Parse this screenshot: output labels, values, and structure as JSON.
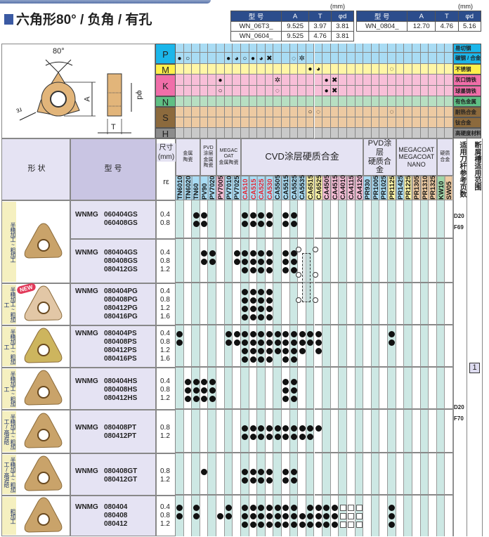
{
  "title": "六角形80° / 负角 / 有孔",
  "spec_tables": [
    {
      "unit": "(mm)",
      "headers": [
        "型 号",
        "A",
        "T",
        "φd"
      ],
      "rows": [
        [
          "WN_06T3_",
          "9.525",
          "3.97",
          "3.81"
        ],
        [
          "WN_0604_",
          "9.525",
          "4.76",
          "3.81"
        ]
      ]
    },
    {
      "unit": "(mm)",
      "headers": [
        "型 号",
        "A",
        "T",
        "φd"
      ],
      "rows": [
        [
          "WN_0804_",
          "12.70",
          "4.76",
          "5.16"
        ]
      ]
    }
  ],
  "diagram": {
    "angle": "80°",
    "a": "A",
    "t": "T",
    "d": "φd",
    "r": "rε"
  },
  "materials": [
    {
      "code": "P",
      "color": "#1bb6ea",
      "cell": "#a9dcf4",
      "dark": "#1bb6ea",
      "rows": [
        "易切钢",
        "碳钢 / 合金钢"
      ]
    },
    {
      "code": "M",
      "color": "#fff04a",
      "cell": "#fff6a6",
      "dark": "#fff04a",
      "rows": [
        "不锈钢"
      ]
    },
    {
      "code": "K",
      "color": "#f06ea9",
      "cell": "#f8bfd8",
      "dark": "#f06ea9",
      "rows": [
        "灰口铸铁",
        "球墨铸铁"
      ]
    },
    {
      "code": "N",
      "color": "#5fbf84",
      "cell": "#b7dfc2",
      "dark": "#5fbf84",
      "rows": [
        "有色金属"
      ]
    },
    {
      "code": "S",
      "color": "#8c6a3d",
      "cell": "#edcaa2",
      "dark": "#8c6a3d",
      "rows": [
        "耐热合金",
        "钛合金"
      ]
    },
    {
      "code": "H",
      "color": "#8c8c8c",
      "cell": "#c9c9c9",
      "dark": "#8c8c8c",
      "rows": [
        "高硬度材料"
      ]
    }
  ],
  "material_marks": [
    [],
    [
      [
        "TN6010",
        "fill"
      ],
      [
        "TN6020",
        "open"
      ],
      [
        "PV7010",
        "fill"
      ],
      [
        "PV7025",
        "notch"
      ],
      [
        "CA510",
        "open"
      ],
      [
        "CA515",
        "fill"
      ],
      [
        "CA525",
        "notch"
      ],
      [
        "CA530",
        "cross"
      ],
      [
        "CA5525",
        "opennotch"
      ],
      [
        "CA5535",
        "gear"
      ]
    ],
    [
      [
        "CA6515",
        "fill"
      ],
      [
        "CA6525",
        "notch"
      ],
      [
        "PR1125",
        "opennotch"
      ]
    ],
    [
      [
        "PV7005",
        "fill"
      ],
      [
        "CA5505",
        "gear"
      ],
      [
        "CA4505",
        "fill"
      ],
      [
        "CA4515",
        "cross"
      ]
    ],
    [
      [
        "PV7005",
        "open"
      ],
      [
        "CA5505",
        "opennotch"
      ],
      [
        "CA4505",
        "fill"
      ],
      [
        "CA4515",
        "cross"
      ]
    ],
    [],
    [
      [
        "CA6515",
        "open"
      ],
      [
        "CA6525",
        "opennotch"
      ],
      [
        "PR1125",
        "opennotch"
      ]
    ],
    [],
    []
  ],
  "symbols": {
    "fill": "●",
    "open": "○",
    "notch": "◕",
    "cross": "✖",
    "opennotch": "◌",
    "gear": "✲"
  },
  "header": {
    "shape": "形 状",
    "model": "型 号",
    "size": "尺寸\n(mm)",
    "r": "rε",
    "holder": "适用刀杆参考页数",
    "breaker": "断屑槽适用范围"
  },
  "groups": [
    {
      "label": "金属\n陶瓷",
      "from": "TN6010",
      "to": "TN60"
    },
    {
      "label": "PVD涂层\n金属陶瓷",
      "from": "PV90",
      "to": "PV7020"
    },
    {
      "label": "MEGACOAT\n金属陶瓷",
      "from": "PV7005",
      "to": "PV7025"
    },
    {
      "label": "CVD涂层硬质合金",
      "from": "CA510",
      "to": "CA4120"
    },
    {
      "label": "PVD涂层\n硬质合金",
      "from": "PR930",
      "to": "PR1125"
    },
    {
      "label": "MEGACOAT\nMEGACOAT NANO",
      "from": "PR1425",
      "to": "PR1325"
    },
    {
      "label": "硬质\n合金",
      "from": "KW10",
      "to": "SW05"
    }
  ],
  "grades": [
    {
      "n": "TN6010",
      "bg": "#a9dcf4"
    },
    {
      "n": "TN6020",
      "bg": "#a9dcf4"
    },
    {
      "n": "TN60",
      "bg": "#a9dcf4"
    },
    {
      "n": "PV90",
      "bg": "#a9dcf4"
    },
    {
      "n": "PV7020",
      "bg": "#a9dcf4"
    },
    {
      "n": "PV7005",
      "bg": "#f8bfd8"
    },
    {
      "n": "PV7010",
      "bg": "#a9dcf4"
    },
    {
      "n": "PV7025",
      "bg": "#a9dcf4"
    },
    {
      "n": "CA510",
      "bg": "#a9dcf4",
      "red": true
    },
    {
      "n": "CA515",
      "bg": "#a9dcf4",
      "red": true
    },
    {
      "n": "CA525",
      "bg": "#a9dcf4",
      "red": true
    },
    {
      "n": "CA530",
      "bg": "#a9dcf4",
      "red": true
    },
    {
      "n": "CA5505",
      "bg": "#a9dcf4"
    },
    {
      "n": "CA5515",
      "bg": "#a9dcf4"
    },
    {
      "n": "CA5525",
      "bg": "#a9dcf4"
    },
    {
      "n": "CA5535",
      "bg": "#a9dcf4"
    },
    {
      "n": "CA6515",
      "bg": "#fff6a6"
    },
    {
      "n": "CA6525",
      "bg": "#fff6a6"
    },
    {
      "n": "CA4505",
      "bg": "#f8bfd8"
    },
    {
      "n": "CA4515",
      "bg": "#f8bfd8"
    },
    {
      "n": "CA4010",
      "bg": "#f8bfd8"
    },
    {
      "n": "CA4115",
      "bg": "#f8bfd8"
    },
    {
      "n": "CA4120",
      "bg": "#f8bfd8"
    },
    {
      "n": "PR930",
      "bg": "#a9dcf4"
    },
    {
      "n": "PR1005",
      "bg": "#a9dcf4"
    },
    {
      "n": "PR1025",
      "bg": "#a9dcf4"
    },
    {
      "n": "PR1125",
      "bg": "#fff6a6"
    },
    {
      "n": "PR1425",
      "bg": "#a9dcf4"
    },
    {
      "n": "PR1225",
      "bg": "#fff6a6"
    },
    {
      "n": "PR1305",
      "bg": "#edcaa2"
    },
    {
      "n": "PR1310",
      "bg": "#edcaa2"
    },
    {
      "n": "PR1325",
      "bg": "#edcaa2"
    },
    {
      "n": "KW10",
      "bg": "#9fd6a8"
    },
    {
      "n": "SW05",
      "bg": "#edcaa2"
    }
  ],
  "products": [
    {
      "prefix": "WNMG",
      "application": "半精加工~粗加工",
      "shape": "gs",
      "new": false,
      "items": [
        {
          "model": "060404GS",
          "r": "0.4",
          "g": [
            2,
            3,
            8,
            9,
            10,
            11,
            13,
            14
          ]
        },
        {
          "model": "060408GS",
          "r": "0.8",
          "g": [
            2,
            3,
            8,
            9,
            10,
            11,
            13,
            14
          ]
        }
      ]
    },
    {
      "prefix": "WNMG",
      "application": "",
      "shape": "",
      "new": false,
      "items": [
        {
          "model": "080404GS",
          "r": "0.4",
          "g": [
            3,
            4,
            7,
            8,
            9,
            10,
            11,
            13,
            14
          ]
        },
        {
          "model": "080408GS",
          "r": "0.8",
          "g": [
            3,
            4,
            7,
            8,
            9,
            10,
            11,
            13,
            14
          ]
        },
        {
          "model": "080412GS",
          "r": "1.2",
          "g": [
            8,
            9,
            10,
            11,
            13,
            14
          ]
        }
      ]
    },
    {
      "prefix": "WNMG",
      "application": "半精加工~粗加工",
      "shape": "pg",
      "new": true,
      "new_label": "NEW",
      "items": [
        {
          "model": "080404PG",
          "r": "0.4",
          "g": [
            8,
            9,
            10,
            11
          ]
        },
        {
          "model": "080408PG",
          "r": "0.8",
          "g": [
            8,
            9,
            10,
            11
          ]
        },
        {
          "model": "080412PG",
          "r": "1.2",
          "g": [
            8,
            9,
            10,
            11
          ]
        },
        {
          "model": "080416PG",
          "r": "1.6",
          "g": [
            8,
            9,
            10,
            11
          ]
        }
      ]
    },
    {
      "prefix": "WNMG",
      "application": "半精加工~粗加工",
      "shape": "ps",
      "new": false,
      "items": [
        {
          "model": "080404PS",
          "r": "0.4",
          "g": [
            0,
            6,
            7,
            8,
            9,
            10,
            11,
            12,
            13,
            14,
            15,
            16,
            17,
            26
          ]
        },
        {
          "model": "080408PS",
          "r": "0.8",
          "g": [
            0,
            6,
            7,
            8,
            9,
            10,
            11,
            12,
            13,
            14,
            15,
            16,
            17,
            26
          ]
        },
        {
          "model": "080412PS",
          "r": "1.2",
          "g": [
            8,
            9,
            10,
            11,
            12,
            13,
            14,
            15,
            17
          ]
        },
        {
          "model": "080416PS",
          "r": "1.6",
          "g": [
            8,
            9,
            10,
            11,
            13,
            14
          ]
        }
      ]
    },
    {
      "prefix": "WNMG",
      "application": "半精加工~粗加工",
      "shape": "hs",
      "new": false,
      "items": [
        {
          "model": "080404HS",
          "r": "0.4",
          "g": [
            1,
            2,
            3,
            4,
            13,
            14
          ]
        },
        {
          "model": "080408HS",
          "r": "0.8",
          "g": [
            1,
            2,
            3,
            4,
            13,
            14
          ]
        },
        {
          "model": "080412HS",
          "r": "1.2",
          "g": [
            1,
            2,
            3,
            4,
            13,
            14
          ]
        }
      ]
    },
    {
      "prefix": "WNMG",
      "application": "半精加工~粗加工/高进给",
      "shape": "pt",
      "new": false,
      "items": [
        {
          "model": "080408PT",
          "r": "0.8",
          "g": [
            8,
            9,
            10,
            11,
            12,
            13,
            14,
            15,
            16,
            17
          ]
        },
        {
          "model": "080412PT",
          "r": "1.2",
          "g": [
            8,
            9,
            10,
            11,
            12,
            13,
            14,
            15,
            16
          ]
        }
      ]
    },
    {
      "prefix": "WNMG",
      "application": "半精加工~粗加工/高进给",
      "shape": "gt",
      "new": false,
      "items": [
        {
          "model": "080408GT",
          "r": "0.8",
          "g": [
            3,
            8,
            9,
            10,
            11,
            13,
            14
          ]
        },
        {
          "model": "080412GT",
          "r": "1.2",
          "g": [
            8,
            9,
            10,
            11,
            13,
            14
          ]
        }
      ]
    },
    {
      "prefix": "WNMG",
      "application": "粗加工",
      "shape": "std",
      "new": false,
      "items": [
        {
          "model": "080404",
          "r": "0.4",
          "g": [
            0,
            2,
            6,
            8,
            9,
            10,
            11,
            12,
            13,
            14,
            16,
            17,
            18,
            19,
            26
          ],
          "sq": [
            20,
            21,
            22
          ]
        },
        {
          "model": "080408",
          "r": "0.8",
          "g": [
            0,
            2,
            5,
            6,
            8,
            9,
            10,
            11,
            12,
            13,
            14,
            15,
            16,
            17,
            18,
            19,
            26
          ],
          "sq": [
            20,
            21,
            22
          ]
        },
        {
          "model": "080412",
          "r": "1.2",
          "g": [
            8,
            9,
            10,
            11,
            12,
            13,
            14,
            15,
            16,
            17,
            18,
            19,
            26
          ],
          "sq": [
            20,
            21,
            22
          ]
        }
      ]
    }
  ],
  "holder_refs": [
    {
      "text": "D20\nF69"
    },
    {
      "text": "D20\nF70"
    }
  ],
  "breaker_ref": "1"
}
